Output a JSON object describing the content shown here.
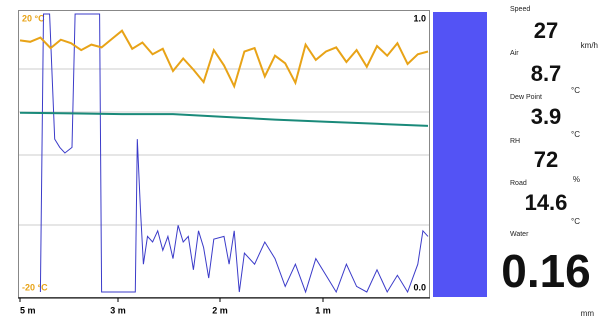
{
  "chart_data": {
    "type": "line",
    "xlim": [
      4,
      0
    ],
    "x_labels": [
      "5 m",
      "3 m",
      "2 m",
      "1 m"
    ],
    "ylim": [
      -20,
      20
    ],
    "yticks": [
      {
        "value": -20,
        "label": "-20 °C"
      },
      {
        "value": 20,
        "label": "20 °C"
      }
    ],
    "y2lim": [
      0,
      1
    ],
    "y2ticks": [
      {
        "value": 0,
        "label": "0.0"
      },
      {
        "value": 1,
        "label": "1.0"
      }
    ],
    "series": [
      {
        "color": "#e8a317",
        "x": [
          4.0,
          3.9,
          3.8,
          3.7,
          3.6,
          3.5,
          3.4,
          3.3,
          3.2,
          3.1,
          3.0,
          2.9,
          2.8,
          2.7,
          2.6,
          2.5,
          2.4,
          2.3,
          2.2,
          2.1,
          2.0,
          1.9,
          1.8,
          1.7,
          1.6,
          1.5,
          1.4,
          1.3,
          1.2,
          1.1,
          1.0,
          0.9,
          0.8,
          0.7,
          0.6,
          0.5,
          0.4,
          0.3,
          0.2,
          0.1,
          0.0
        ],
        "values": [
          16.2,
          16.0,
          16.6,
          15.1,
          16.3,
          15.8,
          14.8,
          15.6,
          15.2,
          16.4,
          17.6,
          15.0,
          15.9,
          14.2,
          15.0,
          11.8,
          13.6,
          12.0,
          10.2,
          14.8,
          12.6,
          9.6,
          14.6,
          15.1,
          11.0,
          14.0,
          12.9,
          10.1,
          15.6,
          13.4,
          14.6,
          15.2,
          13.1,
          14.8,
          12.4,
          15.4,
          14.0,
          15.8,
          12.8,
          14.2,
          14.6
        ]
      },
      {
        "color": "#1a8a7a",
        "x": [
          4.0,
          3.5,
          3.0,
          2.5,
          2.0,
          1.5,
          1.0,
          0.5,
          0.0
        ],
        "values": [
          5.8,
          5.7,
          5.6,
          5.6,
          5.2,
          4.8,
          4.5,
          4.2,
          3.9
        ]
      },
      {
        "color": "#3b3bc9",
        "axis": "y2",
        "x": [
          3.8,
          3.77,
          3.71,
          3.66,
          3.61,
          3.56,
          3.49,
          3.46,
          3.26,
          3.22,
          3.2,
          2.87,
          2.85,
          2.82,
          2.79,
          2.75,
          2.7,
          2.65,
          2.6,
          2.55,
          2.5,
          2.45,
          2.4,
          2.35,
          2.3,
          2.25,
          2.2,
          2.15,
          2.1,
          2.0,
          1.95,
          1.9,
          1.85,
          1.8,
          1.7,
          1.6,
          1.5,
          1.4,
          1.3,
          1.2,
          1.1,
          1.0,
          0.9,
          0.8,
          0.7,
          0.6,
          0.5,
          0.4,
          0.3,
          0.2,
          0.1,
          0.05,
          0.0
        ],
        "values": [
          0,
          1.0,
          1.0,
          0.55,
          0.52,
          0.5,
          0.52,
          1.0,
          1.0,
          1.0,
          0,
          0,
          0.55,
          0.3,
          0.1,
          0.2,
          0.18,
          0.22,
          0.15,
          0.2,
          0.12,
          0.24,
          0.18,
          0.2,
          0.08,
          0.22,
          0.16,
          0.05,
          0.19,
          0.2,
          0.1,
          0.22,
          0.0,
          0.14,
          0.1,
          0.18,
          0.12,
          0.02,
          0.1,
          0.0,
          0.12,
          0.06,
          0.0,
          0.1,
          0.02,
          0.0,
          0.08,
          0.0,
          0.06,
          0.0,
          0.1,
          0.22,
          0.2
        ]
      }
    ]
  },
  "readouts": [
    {
      "label": "Speed",
      "value": "27",
      "unit": "km/h"
    },
    {
      "label": "Air",
      "value": "8.7",
      "unit": "°C"
    },
    {
      "label": "Dew Point",
      "value": "3.9",
      "unit": "°C"
    },
    {
      "label": "RH",
      "value": "72",
      "unit": "%"
    },
    {
      "label": "Road",
      "value": "14.6",
      "unit": "°C"
    },
    {
      "label": "Water",
      "value": "0.16",
      "unit": "mm"
    }
  ]
}
